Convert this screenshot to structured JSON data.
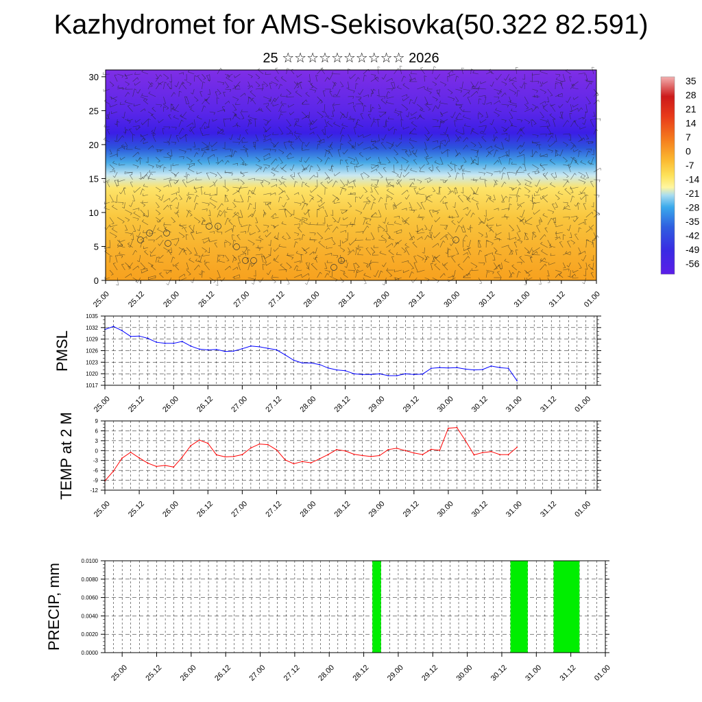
{
  "title": "Kazhydromet for AMS-Sekisovka(50.322 82.591)",
  "subtitle": "25 ☆☆☆☆☆☆☆☆☆☆ 2026",
  "colors": {
    "pmsl_line": "#0000ff",
    "temp_line": "#ff0000",
    "precip_bar": "#00ee00",
    "grid": "#000000"
  },
  "chart_data": [
    {
      "id": "cross-section",
      "type": "heatmap",
      "title": "",
      "xlabel": "",
      "ylabel": "",
      "x_tick_labels": [
        "25.00",
        "25.12",
        "26.00",
        "26.12",
        "27.00",
        "27.12",
        "28.00",
        "28.12",
        "29.00",
        "29.12",
        "30.00",
        "30.12",
        "31.00",
        "31.12",
        "01.00"
      ],
      "y_ticks": [
        0,
        5,
        10,
        15,
        20,
        25,
        30
      ],
      "ylim": [
        0,
        31
      ],
      "colorbar": {
        "labels": [
          "35",
          "28",
          "21",
          "14",
          "7",
          "0",
          "-7",
          "-14",
          "-21",
          "-28",
          "-35",
          "-42",
          "-49",
          "-56"
        ],
        "range": [
          -60,
          40
        ]
      },
      "levels": [
        0,
        5,
        10,
        15,
        20,
        25,
        30
      ],
      "temperature_by_level": [
        -4,
        -6,
        -9,
        -13,
        -40,
        -55,
        -55
      ]
    },
    {
      "id": "pmsl",
      "type": "line",
      "ylabel": "PMSL",
      "ylim": [
        1017,
        1035
      ],
      "y_ticks": [
        1017,
        1020,
        1023,
        1026,
        1029,
        1032,
        1035
      ],
      "x_tick_labels": [
        "25.00",
        "25.12",
        "26.00",
        "26.12",
        "27.00",
        "27.12",
        "28.00",
        "28.12",
        "29.00",
        "29.12",
        "30.00",
        "30.12",
        "31.00",
        "31.12",
        "01.00"
      ],
      "x": [
        0,
        3,
        6,
        9,
        12,
        15,
        18,
        21,
        24,
        27,
        30,
        33,
        36,
        39,
        42,
        45,
        48,
        51,
        54,
        57,
        60,
        63,
        66,
        69,
        72,
        75,
        78,
        81,
        84,
        87,
        90,
        93,
        96,
        99,
        102,
        105,
        108,
        111,
        114,
        117,
        120,
        123,
        126,
        129,
        132,
        135,
        138,
        141,
        144
      ],
      "values": [
        1031.5,
        1032.3,
        1031.2,
        1029.7,
        1029.8,
        1029.2,
        1028.2,
        1027.9,
        1027.9,
        1028.4,
        1027.2,
        1026.4,
        1026.2,
        1026.3,
        1025.8,
        1025.9,
        1026.5,
        1027.2,
        1027.0,
        1026.6,
        1026.2,
        1024.9,
        1023.5,
        1022.8,
        1022.8,
        1022.4,
        1021.5,
        1021.0,
        1020.8,
        1020.0,
        1019.8,
        1019.8,
        1020.0,
        1019.5,
        1019.5,
        1020.0,
        1019.8,
        1019.9,
        1021.4,
        1021.6,
        1021.5,
        1021.6,
        1021.2,
        1021.0,
        1021.1,
        1022.0,
        1021.6,
        1021.4,
        1018.2
      ]
    },
    {
      "id": "temp",
      "type": "line",
      "ylabel": "TEMP at 2 M",
      "ylim": [
        -12,
        9
      ],
      "y_ticks": [
        -12,
        -9,
        -6,
        -3,
        0,
        3,
        6,
        9
      ],
      "x_tick_labels": [
        "25.00",
        "25.12",
        "26.00",
        "26.12",
        "27.00",
        "27.12",
        "28.00",
        "28.12",
        "29.00",
        "29.12",
        "30.00",
        "30.12",
        "31.00",
        "31.12",
        "01.00"
      ],
      "x": [
        0,
        3,
        6,
        9,
        12,
        15,
        18,
        21,
        24,
        27,
        30,
        33,
        36,
        39,
        42,
        45,
        48,
        51,
        54,
        57,
        60,
        63,
        66,
        69,
        72,
        75,
        78,
        81,
        84,
        87,
        90,
        93,
        96,
        99,
        102,
        105,
        108,
        111,
        114,
        117,
        120,
        123,
        126,
        129,
        132,
        135,
        138,
        141,
        144
      ],
      "values": [
        -9.2,
        -6.2,
        -2.3,
        -0.5,
        -2.2,
        -3.8,
        -4.8,
        -4.5,
        -5.0,
        -2.0,
        1.5,
        3.2,
        2.2,
        -1.3,
        -1.9,
        -1.8,
        -1.2,
        0.8,
        2.0,
        1.8,
        0.2,
        -2.8,
        -4.0,
        -3.3,
        -3.7,
        -2.5,
        -1.2,
        0.3,
        -0.1,
        -1.1,
        -1.5,
        -1.8,
        -1.5,
        0.3,
        0.7,
        0.0,
        -0.7,
        -1.2,
        0.4,
        0.1,
        6.8,
        7.0,
        3.0,
        -1.3,
        -0.6,
        -0.3,
        -1.2,
        -1.2,
        1.0
      ]
    },
    {
      "id": "precip",
      "type": "bar",
      "ylabel": "PRECIP, mm",
      "ylim": [
        0,
        0.01
      ],
      "y_ticks": [
        "0.0000",
        "0.0020",
        "0.0040",
        "0.0060",
        "0.0080",
        "0.0100"
      ],
      "x_tick_labels": [
        "25.00",
        "25.12",
        "26.00",
        "26.12",
        "27.00",
        "27.12",
        "28.00",
        "28.12",
        "29.00",
        "29.12",
        "30.00",
        "30.12",
        "31.00",
        "31.12",
        "01.00"
      ],
      "bars": [
        {
          "start": 93,
          "end": 96,
          "value": 0.01
        },
        {
          "start": 141,
          "end": 147,
          "value": 0.01
        },
        {
          "start": 156,
          "end": 165,
          "value": 0.01
        }
      ]
    }
  ]
}
